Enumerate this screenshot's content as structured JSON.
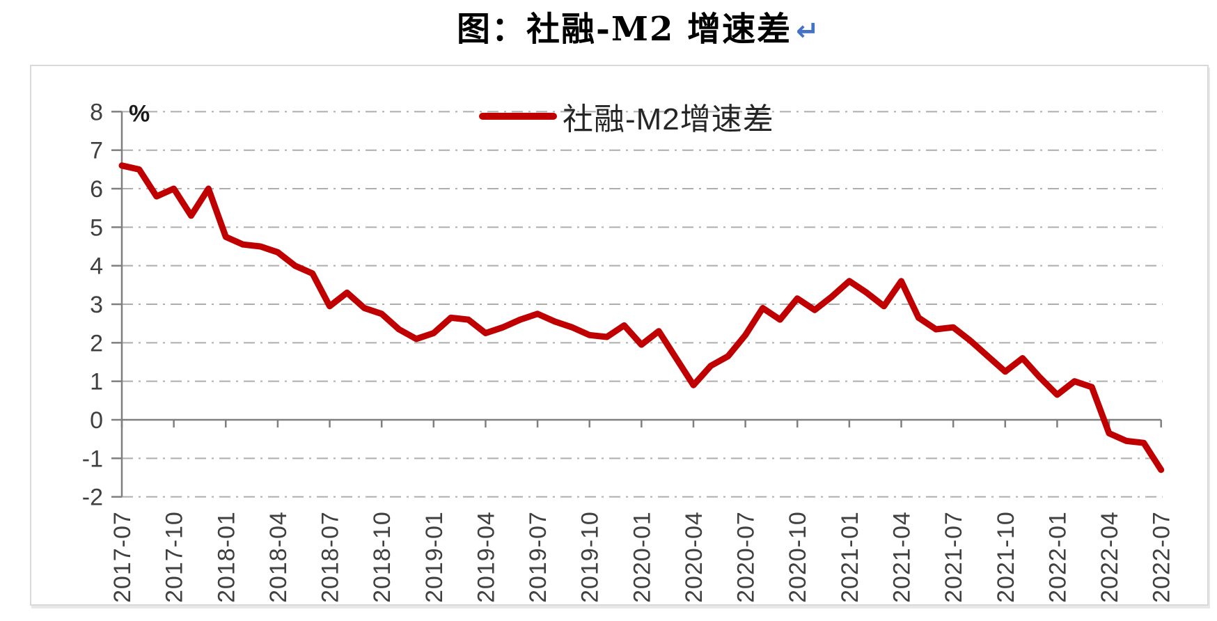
{
  "title": {
    "text": "图：社融-M2 增速差",
    "paragraph_mark": "↵",
    "paragraph_mark_color": "#4472C4"
  },
  "chart": {
    "frame_border_color": "#D9D9D9",
    "background": "#ffffff",
    "legend": {
      "label": "社融-M2增速差",
      "line_color": "#C00000",
      "position": "top-center"
    }
  },
  "chart_data": {
    "type": "line",
    "title": "图：社融-M2 增速差",
    "ylabel": "%",
    "ylim": [
      -2,
      8
    ],
    "y_ticks": [
      8,
      7,
      6,
      5,
      4,
      3,
      2,
      1,
      0,
      -1,
      -2
    ],
    "gridline_values": [
      8,
      7,
      6,
      5,
      4,
      3,
      2,
      1,
      -1,
      -2
    ],
    "grid_style": "dash-dot",
    "grid_on": true,
    "legend_position": "top-center",
    "x_start": "2017-07",
    "x_end": "2022-07",
    "x_frequency": "monthly",
    "x_tick_labels": [
      "2017-07",
      "2017-10",
      "2018-01",
      "2018-04",
      "2018-07",
      "2018-10",
      "2019-01",
      "2019-04",
      "2019-07",
      "2019-10",
      "2020-01",
      "2020-04",
      "2020-07",
      "2020-10",
      "2021-01",
      "2021-04",
      "2021-07",
      "2021-10",
      "2022-01",
      "2022-04",
      "2022-07"
    ],
    "series": [
      {
        "name": "社融-M2增速差",
        "color": "#C00000",
        "values": [
          6.6,
          6.5,
          5.8,
          6.0,
          5.3,
          6.0,
          4.75,
          4.55,
          4.5,
          4.35,
          4.0,
          3.8,
          2.95,
          3.3,
          2.9,
          2.75,
          2.35,
          2.1,
          2.25,
          2.65,
          2.6,
          2.25,
          2.4,
          2.6,
          2.75,
          2.55,
          2.4,
          2.2,
          2.15,
          2.45,
          1.95,
          2.3,
          1.6,
          0.9,
          1.4,
          1.65,
          2.2,
          2.9,
          2.6,
          3.15,
          2.85,
          3.2,
          3.6,
          3.3,
          2.95,
          3.6,
          2.65,
          2.35,
          2.4,
          2.05,
          1.65,
          1.25,
          1.6,
          1.1,
          0.65,
          1.0,
          0.85,
          -0.35,
          -0.55,
          -0.6,
          -1.3
        ]
      }
    ],
    "colors": {
      "axis": "#7F7F7F",
      "grid": "#ADADAD",
      "labels": "#404040",
      "unit_label": "#1a1a1a"
    }
  }
}
